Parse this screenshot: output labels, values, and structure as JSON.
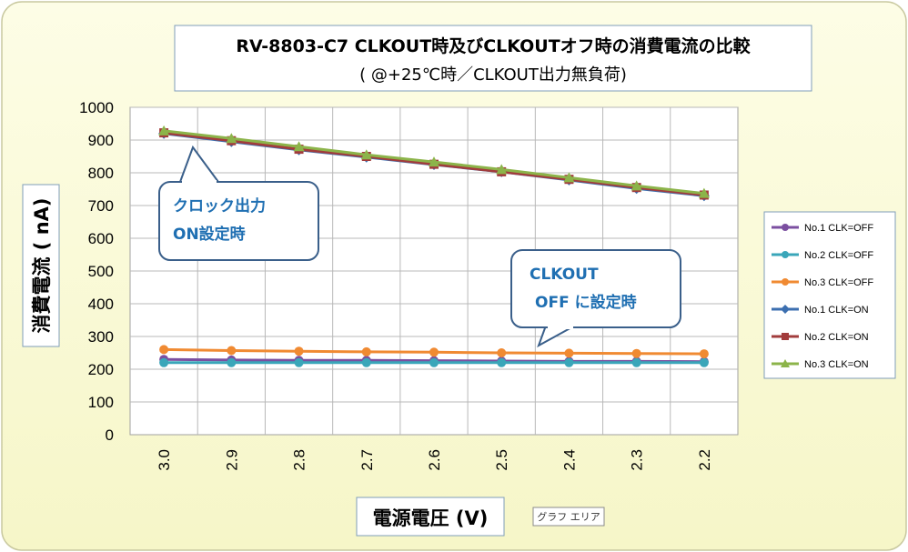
{
  "title": {
    "main": "RV-8803-C7 CLKOUT時及びCLKOUTオフ時の消費電流の比較",
    "sub": "( @+25℃時／CLKOUT出力無負荷)"
  },
  "tooltip": "グラフ エリア",
  "callouts": {
    "on": [
      "クロック出力",
      "ON設定時"
    ],
    "off": [
      "CLKOUT",
      "OFF に設定時"
    ]
  },
  "chart_data": {
    "type": "line",
    "categories": [
      "3.0",
      "2.9",
      "2.8",
      "2.7",
      "2.6",
      "2.5",
      "2.4",
      "2.3",
      "2.2"
    ],
    "xlabel": "電源電圧 (V)",
    "ylabel": "消費電流 ( nA)",
    "ylim": [
      0,
      1000
    ],
    "yticks": [
      0,
      100,
      200,
      300,
      400,
      500,
      600,
      700,
      800,
      900,
      1000
    ],
    "grid": true,
    "legend_position": "right",
    "series": [
      {
        "name": "No.1 CLK=OFF",
        "color": "#7b4fa0",
        "marker": "circle",
        "values": [
          230,
          228,
          227,
          227,
          226,
          225,
          224,
          224,
          223
        ]
      },
      {
        "name": "No.2 CLK=OFF",
        "color": "#3aa6b9",
        "marker": "circle",
        "values": [
          220,
          220,
          220,
          220,
          220,
          220,
          220,
          220,
          220
        ]
      },
      {
        "name": "No.3 CLK=OFF",
        "color": "#f08a32",
        "marker": "circle",
        "values": [
          260,
          257,
          255,
          253,
          252,
          250,
          249,
          248,
          247
        ]
      },
      {
        "name": "No.1 CLK=ON",
        "color": "#3c6fb0",
        "marker": "diamond",
        "values": [
          920,
          895,
          870,
          848,
          825,
          803,
          778,
          752,
          730
        ]
      },
      {
        "name": "No.2 CLK=ON",
        "color": "#a23c3c",
        "marker": "square",
        "values": [
          922,
          898,
          872,
          850,
          826,
          803,
          780,
          755,
          732
        ]
      },
      {
        "name": "No.3 CLK=ON",
        "color": "#8cb44a",
        "marker": "triangle",
        "values": [
          928,
          905,
          880,
          855,
          833,
          810,
          785,
          760,
          737
        ]
      }
    ]
  }
}
